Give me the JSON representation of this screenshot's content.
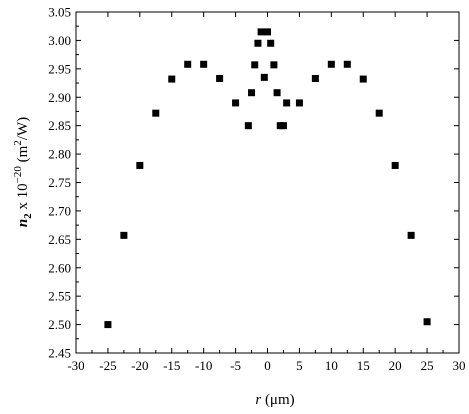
{
  "chart_data": {
    "type": "scatter",
    "title": "",
    "xlabel": {
      "var": "r",
      "unit": " (μm)"
    },
    "ylabel": {
      "var": "n",
      "sub": "2",
      "mid": " x 10",
      "sup": "−20",
      "unit": " (m",
      "unitsup": "2",
      "unitend": "/W)"
    },
    "xlim": [
      -30,
      30
    ],
    "ylim": [
      2.45,
      3.05
    ],
    "xticks": [
      -30,
      -25,
      -20,
      -15,
      -10,
      -5,
      0,
      5,
      10,
      15,
      20,
      25,
      30
    ],
    "xtick_labels": [
      "-30",
      "-25",
      "-20",
      "-15",
      "-10",
      "-5",
      "0",
      "5",
      "10",
      "15",
      "20",
      "25",
      "30"
    ],
    "yticks": [
      2.45,
      2.5,
      2.55,
      2.6,
      2.65,
      2.7,
      2.75,
      2.8,
      2.85,
      2.9,
      2.95,
      3.0,
      3.05
    ],
    "ytick_labels": [
      "2.45",
      "2.50",
      "2.55",
      "2.60",
      "2.65",
      "2.70",
      "2.75",
      "2.80",
      "2.85",
      "2.90",
      "2.95",
      "3.00",
      "3.05"
    ],
    "grid": false,
    "marker": "square",
    "color": "#000000",
    "series": [
      {
        "x": [
          -25,
          -22.5,
          -20,
          -17.5,
          -15,
          -12.5,
          -10,
          -7.5,
          -5,
          -3,
          -2.5,
          -2,
          -1.5,
          -1,
          -0.5,
          0,
          0.5,
          1,
          1.5,
          2,
          2.5,
          3,
          5,
          7.5,
          10,
          12.5,
          15,
          17.5,
          20,
          22.5,
          25
        ],
        "y": [
          2.5,
          2.657,
          2.78,
          2.872,
          2.932,
          2.958,
          2.958,
          2.933,
          2.89,
          2.85,
          2.908,
          2.957,
          2.995,
          3.015,
          2.935,
          3.015,
          2.995,
          2.957,
          2.908,
          2.85,
          2.85,
          2.89,
          2.89,
          2.933,
          2.958,
          2.958,
          2.932,
          2.872,
          2.78,
          2.657,
          2.505
        ]
      }
    ]
  }
}
